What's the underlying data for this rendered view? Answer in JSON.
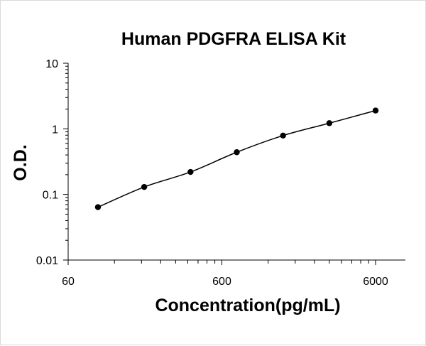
{
  "chart_data": {
    "type": "scatter",
    "title": "Human PDGFRA ELISA Kit",
    "xlabel": "Concentration(pg/mL)",
    "ylabel": "O.D.",
    "x_scale": "log",
    "y_scale": "log",
    "xlim": [
      60,
      6000
    ],
    "ylim": [
      0.01,
      10
    ],
    "x_ticks": [
      "60",
      "600",
      "6000"
    ],
    "y_ticks": [
      "10",
      "1",
      "0.1",
      "0.01"
    ],
    "grid": false,
    "legend": "none",
    "series": [
      {
        "points": [
          {
            "x": 93.75,
            "y": 0.064
          },
          {
            "x": 187.5,
            "y": 0.13
          },
          {
            "x": 375,
            "y": 0.22
          },
          {
            "x": 750,
            "y": 0.44
          },
          {
            "x": 1500,
            "y": 0.79
          },
          {
            "x": 3000,
            "y": 1.22
          },
          {
            "x": 6000,
            "y": 1.9
          }
        ],
        "color": "#000000",
        "fit_line": true
      }
    ]
  }
}
